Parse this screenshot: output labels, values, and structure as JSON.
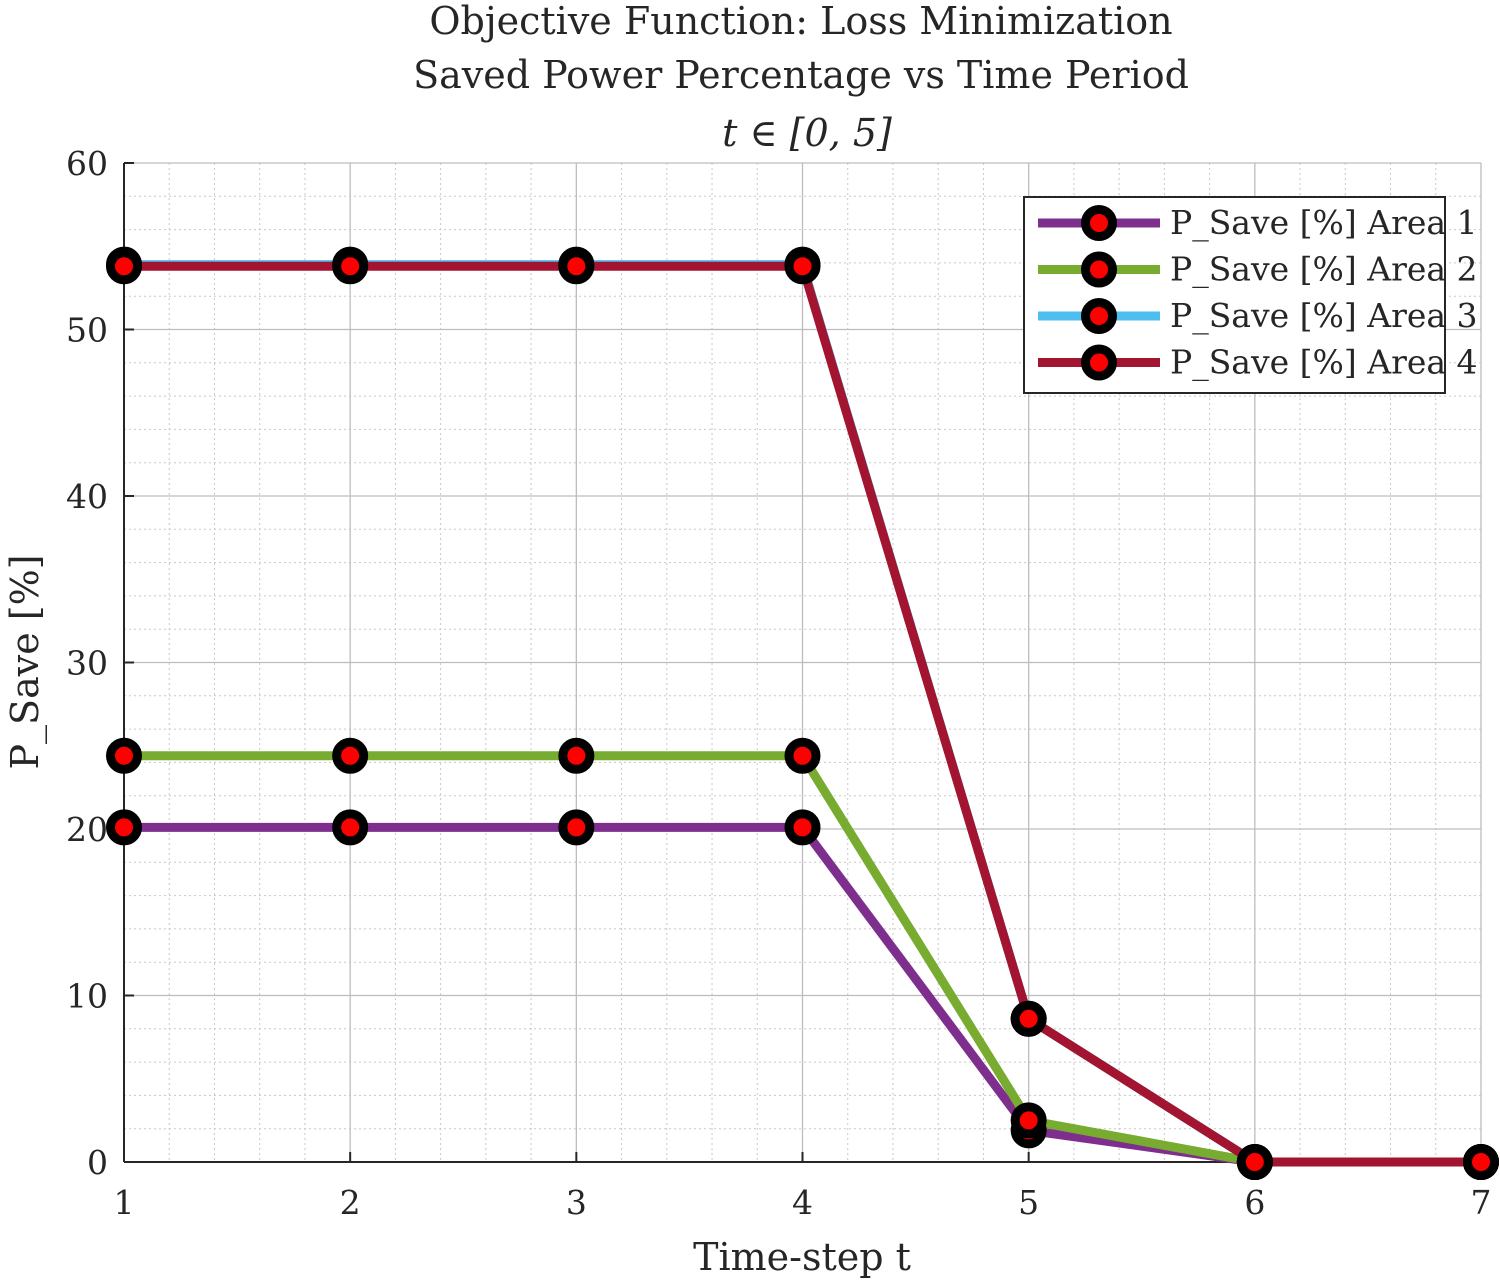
{
  "chart_data": {
    "type": "line",
    "title": [
      "Objective Function: Loss Minimization",
      "Saved Power Percentage vs Time Period",
      "t ∈ [0, 5]"
    ],
    "xlabel": "Time-step t",
    "ylabel": "P_Save [%]",
    "xlim": [
      1,
      7
    ],
    "ylim": [
      0,
      60
    ],
    "x_ticks": [
      "1",
      "2",
      "3",
      "4",
      "5",
      "6",
      "7"
    ],
    "y_ticks": [
      "0",
      "10",
      "20",
      "30",
      "40",
      "50",
      "60"
    ],
    "grid": true,
    "minor_grid": true,
    "legend_position": "top-right",
    "x": [
      1,
      2,
      3,
      4,
      5,
      6,
      7
    ],
    "series": [
      {
        "name": "P_Save [%] Area 1",
        "color": "#7E2F8E",
        "values": [
          20.1,
          20.1,
          20.1,
          20.1,
          1.9,
          0,
          0
        ]
      },
      {
        "name": "P_Save [%] Area 2",
        "color": "#77AC30",
        "values": [
          24.4,
          24.4,
          24.4,
          24.4,
          2.5,
          0,
          0
        ]
      },
      {
        "name": "P_Save [%] Area 3",
        "color": "#4DBEEE",
        "values": [
          53.9,
          53.9,
          53.9,
          53.9,
          8.6,
          0,
          0
        ]
      },
      {
        "name": "P_Save [%] Area 4",
        "color": "#A2142F",
        "values": [
          53.8,
          53.8,
          53.8,
          53.8,
          8.6,
          0,
          0
        ]
      }
    ],
    "marker": {
      "face_color": "#FF0000",
      "edge_color": "#000000"
    }
  }
}
